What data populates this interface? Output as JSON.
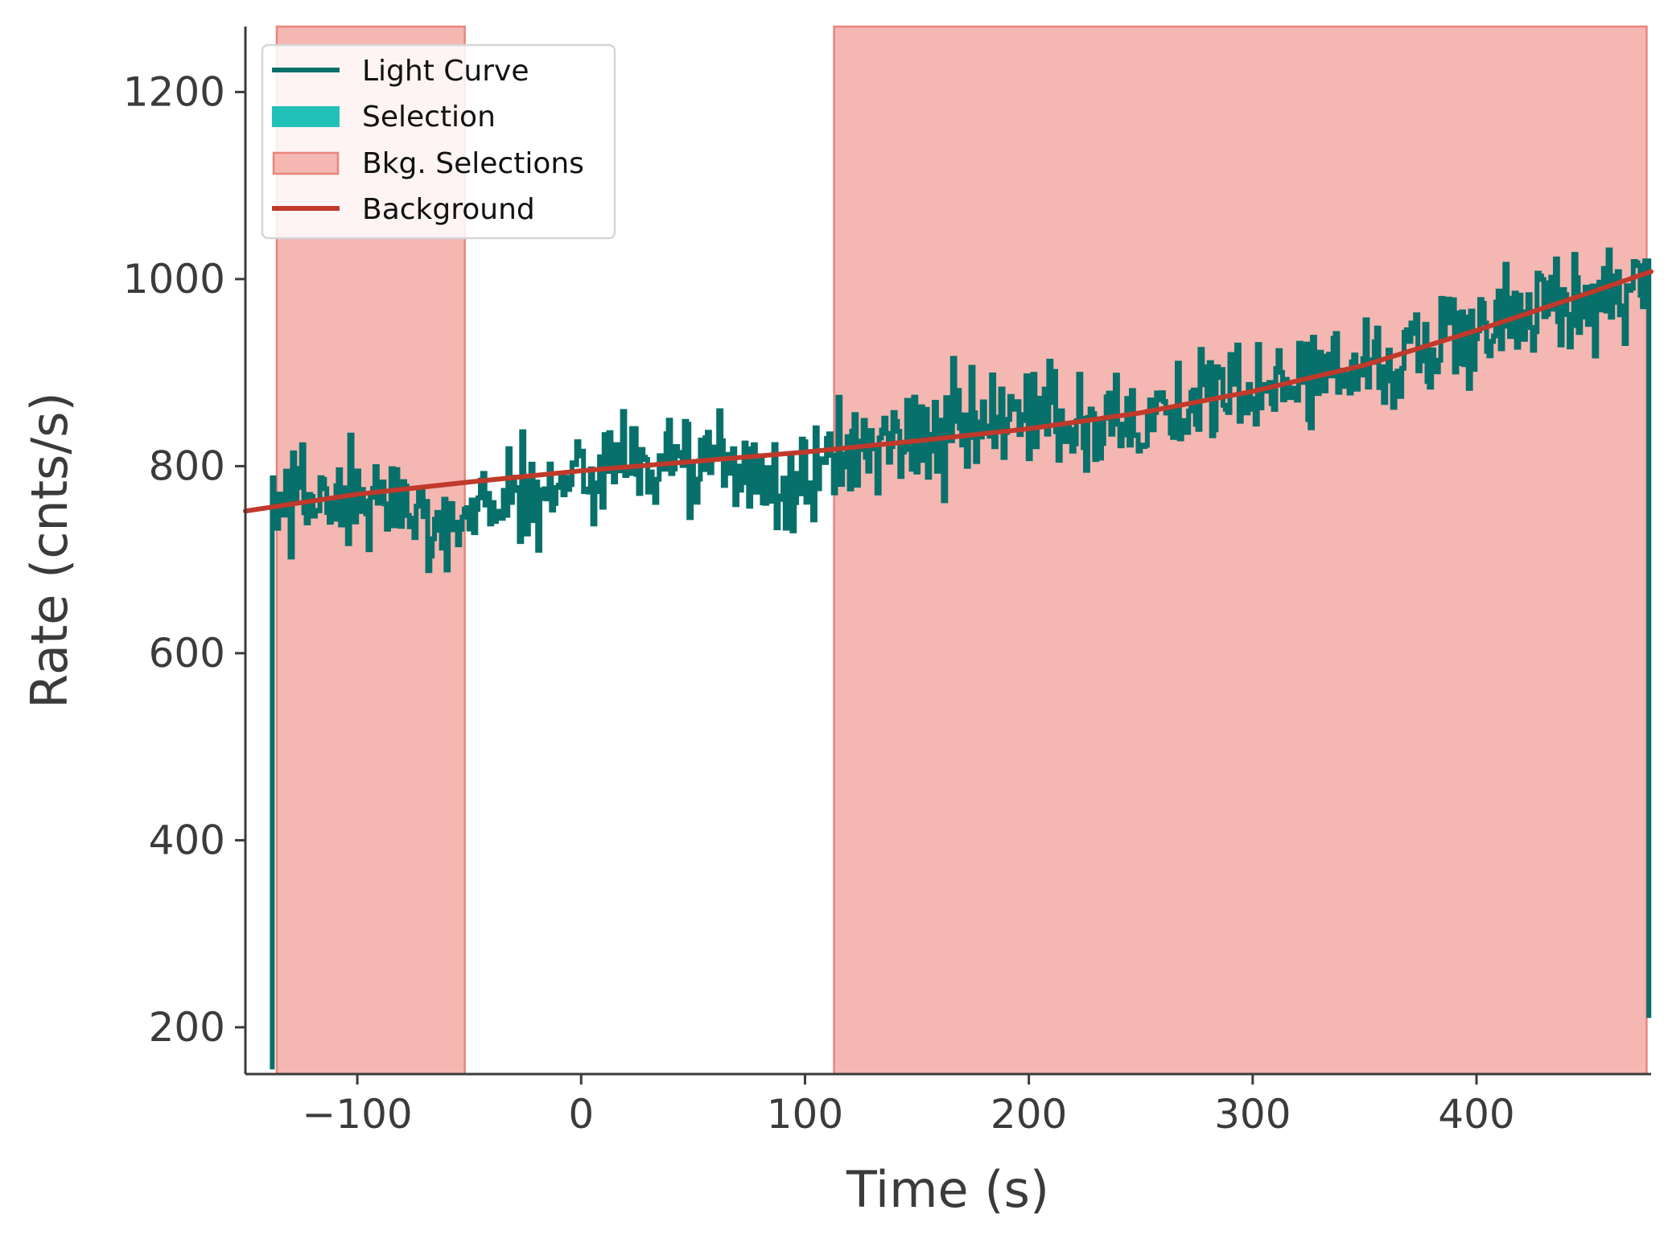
{
  "colors": {
    "light_curve": "#07706a",
    "selection": "#22c1b8",
    "bkg_fill": "#f5b7b2",
    "bkg_edge": "#e8857d",
    "background": "#c0392b",
    "axis": "#3b3b3b"
  },
  "chart_data": {
    "type": "line",
    "title": "",
    "xlabel": "Time (s)",
    "ylabel": "Rate (cnts/s)",
    "xlim": [
      -150,
      478
    ],
    "ylim": [
      150,
      1270
    ],
    "xticks": [
      -100,
      0,
      100,
      200,
      300,
      400
    ],
    "xtick_labels": [
      "−100",
      "0",
      "100",
      "200",
      "300",
      "400"
    ],
    "yticks": [
      200,
      400,
      600,
      800,
      1000,
      1200
    ],
    "ytick_labels": [
      "200",
      "400",
      "600",
      "800",
      "1000",
      "1200"
    ],
    "grid": false,
    "legend_position": "top-left",
    "legend": [
      "Light Curve",
      "Selection",
      "Bkg. Selections",
      "Background"
    ],
    "light_curve": {
      "name": "Light Curve",
      "t_start": -138,
      "bin_width": 1.024,
      "start_value": 155,
      "end_value": 210,
      "knots": [
        [
          -136,
          760
        ],
        [
          -120,
          770
        ],
        [
          -100,
          755
        ],
        [
          -80,
          760
        ],
        [
          -60,
          740
        ],
        [
          -40,
          765
        ],
        [
          -20,
          770
        ],
        [
          0,
          790
        ],
        [
          20,
          810
        ],
        [
          40,
          805
        ],
        [
          60,
          800
        ],
        [
          80,
          785
        ],
        [
          100,
          780
        ],
        [
          120,
          820
        ],
        [
          140,
          830
        ],
        [
          160,
          835
        ],
        [
          180,
          838
        ],
        [
          200,
          845
        ],
        [
          220,
          850
        ],
        [
          240,
          855
        ],
        [
          260,
          862
        ],
        [
          280,
          868
        ],
        [
          300,
          880
        ],
        [
          320,
          892
        ],
        [
          340,
          905
        ],
        [
          360,
          915
        ],
        [
          380,
          930
        ],
        [
          400,
          945
        ],
        [
          420,
          962
        ],
        [
          440,
          975
        ],
        [
          460,
          988
        ],
        [
          476,
          1000
        ]
      ],
      "noise_amplitude": 28
    },
    "background_model": {
      "name": "Background",
      "x": [
        -150,
        -100,
        -50,
        0,
        50,
        100,
        150,
        200,
        250,
        300,
        350,
        400,
        450,
        478
      ],
      "y": [
        752,
        770,
        783,
        795,
        805,
        815,
        827,
        840,
        857,
        880,
        908,
        945,
        985,
        1008
      ]
    },
    "bkg_selections": [
      {
        "name": "Bkg. Selections",
        "xmin": -136,
        "xmax": -52
      },
      {
        "name": "Bkg. Selections",
        "xmin": 113,
        "xmax": 476
      }
    ],
    "selection": []
  }
}
